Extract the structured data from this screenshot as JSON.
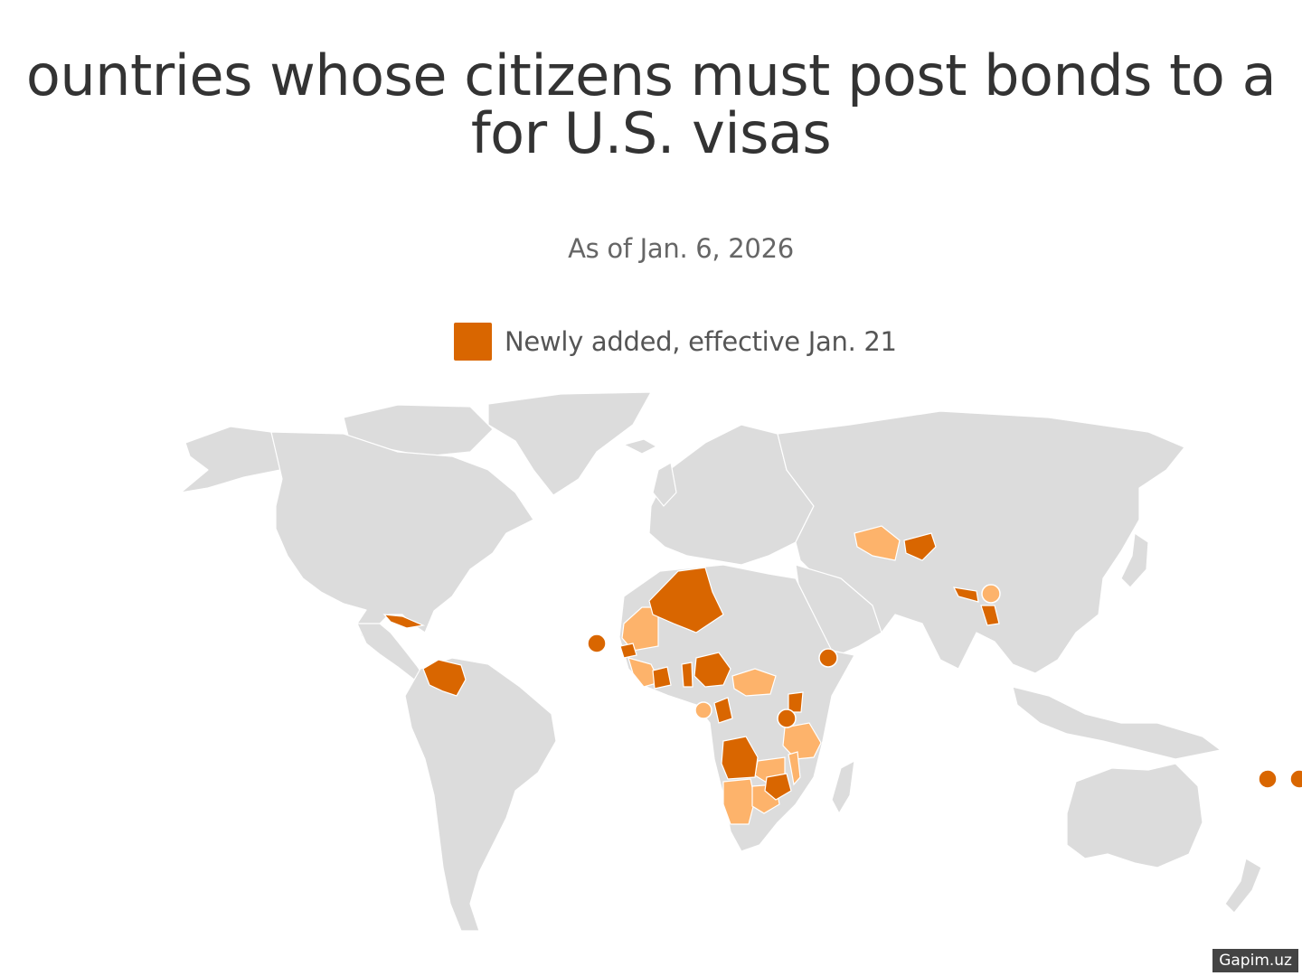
{
  "title": {
    "line1": "ountries whose citizens must post bonds to a",
    "line2": "for U.S. visas"
  },
  "subtitle": "As of Jan. 6, 2026",
  "legend": {
    "label": "Newly added, effective Jan. 21",
    "color": "#d96600"
  },
  "colors": {
    "land": "#dcdcdc",
    "newly_added": "#d96600",
    "existing": "#fdb36b"
  },
  "watermark": "Gapim.uz"
}
